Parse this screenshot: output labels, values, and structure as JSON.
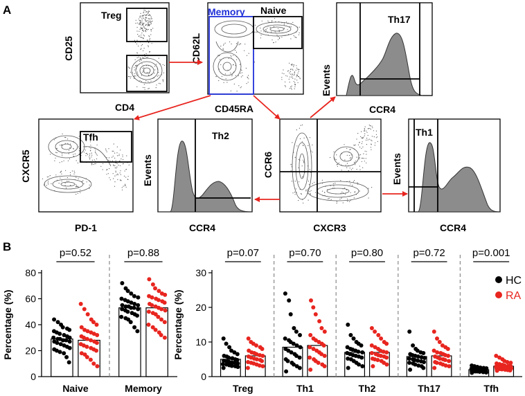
{
  "panel_labels": {
    "a": "A",
    "b": "B"
  },
  "gating": {
    "cd4": {
      "xlabel": "CD4",
      "ylabel": "CD25",
      "gate": "Treg"
    },
    "cd45ra": {
      "xlabel": "CD45RA",
      "ylabel": "CD62L",
      "gate_memory": "Memory",
      "gate_naive": "Naive"
    },
    "th17": {
      "xlabel": "CCR4",
      "ylabel": "Events",
      "gate": "Th17"
    },
    "tfh": {
      "xlabel": "PD-1",
      "ylabel": "CXCR5",
      "gate": "Tfh"
    },
    "th2": {
      "xlabel": "CCR4",
      "ylabel": "Events",
      "gate": "Th2"
    },
    "cxcr3": {
      "xlabel": "CXCR3",
      "ylabel": "CCR6"
    },
    "th1": {
      "xlabel": "CCR4",
      "ylabel": "Events",
      "gate": "Th1"
    }
  },
  "colors": {
    "hc": "#000000",
    "ra": "#e8251f",
    "memory_gate": "#1f2fd8",
    "arrow": "#e8251f",
    "fill": "#8c8c8c"
  },
  "chart_data": [
    {
      "type": "scatter",
      "title": "",
      "ylabel": "Percentage (%)",
      "ylim": [
        0,
        80
      ],
      "yticks": [
        "0",
        "20",
        "40",
        "60",
        "80"
      ],
      "categories": [
        "Naive",
        "Memory"
      ],
      "pvalues": [
        "p=0.52",
        "p=0.88"
      ],
      "series": [
        {
          "name": "HC",
          "means": [
            29,
            53
          ],
          "values": [
            [
              44,
              42,
              40,
              38,
              37,
              36,
              35,
              34,
              33,
              32,
              31,
              30,
              30,
              29,
              29,
              28,
              28,
              27,
              27,
              26,
              25,
              24,
              23,
              22,
              21,
              20,
              19,
              18,
              15,
              11
            ],
            [
              72,
              68,
              66,
              64,
              62,
              61,
              60,
              59,
              58,
              57,
              56,
              55,
              55,
              54,
              54,
              53,
              53,
              52,
              52,
              51,
              50,
              49,
              48,
              47,
              46,
              45,
              44,
              42,
              38,
              35
            ]
          ]
        },
        {
          "name": "RA",
          "means": [
            28,
            53
          ],
          "values": [
            [
              56,
              52,
              48,
              44,
              42,
              40,
              38,
              36,
              35,
              34,
              33,
              32,
              31,
              30,
              29,
              28,
              27,
              26,
              25,
              24,
              23,
              22,
              21,
              20,
              18,
              17,
              15,
              13,
              10,
              8
            ],
            [
              75,
              71,
              68,
              66,
              64,
              63,
              62,
              61,
              60,
              59,
              58,
              57,
              56,
              55,
              54,
              53,
              52,
              51,
              50,
              49,
              48,
              46,
              44,
              42,
              40,
              38,
              36,
              34,
              32,
              30
            ]
          ]
        }
      ]
    },
    {
      "type": "scatter",
      "title": "",
      "ylabel": "Percentage (%)",
      "ylim": [
        0,
        30
      ],
      "yticks": [
        "0",
        "10",
        "20",
        "30"
      ],
      "categories": [
        "Treg",
        "Th1",
        "Th2",
        "Th17",
        "Tfh"
      ],
      "pvalues": [
        "p=0.07",
        "p=0.70",
        "p=0.80",
        "p=0.72",
        "p=0.001"
      ],
      "legend": [
        "HC",
        "RA"
      ],
      "series": [
        {
          "name": "HC",
          "means": [
            5,
            8.5,
            7,
            5.8,
            2
          ],
          "values": [
            [
              11,
              9.5,
              8.5,
              7.5,
              7,
              6.5,
              6,
              5.8,
              5.5,
              5.3,
              5,
              4.8,
              4.6,
              4.5,
              4.3,
              4.1,
              4,
              3.8,
              3.6,
              3.5,
              3.3,
              3.1,
              3,
              2.8,
              2.5
            ],
            [
              24,
              22,
              18,
              14,
              13,
              12,
              11,
              10.5,
              10,
              9.5,
              9,
              8.5,
              8,
              7.5,
              7,
              6.5,
              6,
              5.5,
              5,
              4.5,
              4,
              3.5,
              3,
              2.5,
              1.5
            ],
            [
              15,
              12,
              11,
              10,
              9.5,
              9,
              8.5,
              8,
              7.8,
              7.5,
              7.2,
              7,
              6.8,
              6.5,
              6.2,
              6,
              5.8,
              5.5,
              5.2,
              5,
              4.5,
              4,
              3.5,
              3,
              2.5
            ],
            [
              13,
              9,
              8,
              7.5,
              7,
              6.8,
              6.5,
              6.2,
              6,
              5.8,
              5.6,
              5.4,
              5.2,
              5,
              4.8,
              4.6,
              4.4,
              4.2,
              4,
              3.8,
              3.5,
              3.2,
              3,
              2.5,
              2
            ],
            [
              3.2,
              3,
              2.8,
              2.6,
              2.5,
              2.4,
              2.3,
              2.2,
              2.1,
              2,
              2,
              1.9,
              1.9,
              1.8,
              1.8,
              1.7,
              1.7,
              1.6,
              1.6,
              1.5,
              1.5,
              1.4,
              1.3,
              1.2,
              1.1
            ]
          ]
        },
        {
          "name": "RA",
          "means": [
            6,
            9,
            7,
            6,
            3
          ],
          "values": [
            [
              11,
              10,
              9.5,
              9,
              8.5,
              8,
              7.5,
              7,
              6.8,
              6.5,
              6.2,
              6,
              5.8,
              5.5,
              5.2,
              5,
              4.8,
              4.5,
              4.2,
              4,
              3.8,
              3.5,
              3.2,
              3,
              2.5
            ],
            [
              22,
              20,
              18,
              16,
              14,
              13,
              12,
              11,
              10.5,
              10,
              9.5,
              9,
              8.5,
              8,
              7.5,
              7,
              6.5,
              6,
              5.5,
              5,
              4.5,
              4,
              3.5,
              3,
              2
            ],
            [
              14,
              13,
              12,
              11,
              10,
              9.5,
              9,
              8.5,
              8,
              7.5,
              7.2,
              7,
              6.8,
              6.5,
              6.2,
              6,
              5.8,
              5.5,
              5.2,
              5,
              4.8,
              4.5,
              4,
              3.5,
              3
            ],
            [
              13,
              11,
              10,
              9,
              8.5,
              8,
              7.5,
              7,
              6.8,
              6.5,
              6.2,
              6,
              5.8,
              5.5,
              5.2,
              5,
              4.8,
              4.5,
              4.2,
              4,
              3.8,
              3.5,
              3.2,
              3,
              2.5
            ],
            [
              6,
              5.5,
              5,
              4.5,
              4.2,
              4,
              3.8,
              3.6,
              3.4,
              3.2,
              3.1,
              3,
              2.9,
              2.8,
              2.7,
              2.6,
              2.5,
              2.4,
              2.3,
              2.2,
              2.1,
              2,
              1.9,
              1.8,
              1.7
            ]
          ]
        }
      ]
    }
  ]
}
